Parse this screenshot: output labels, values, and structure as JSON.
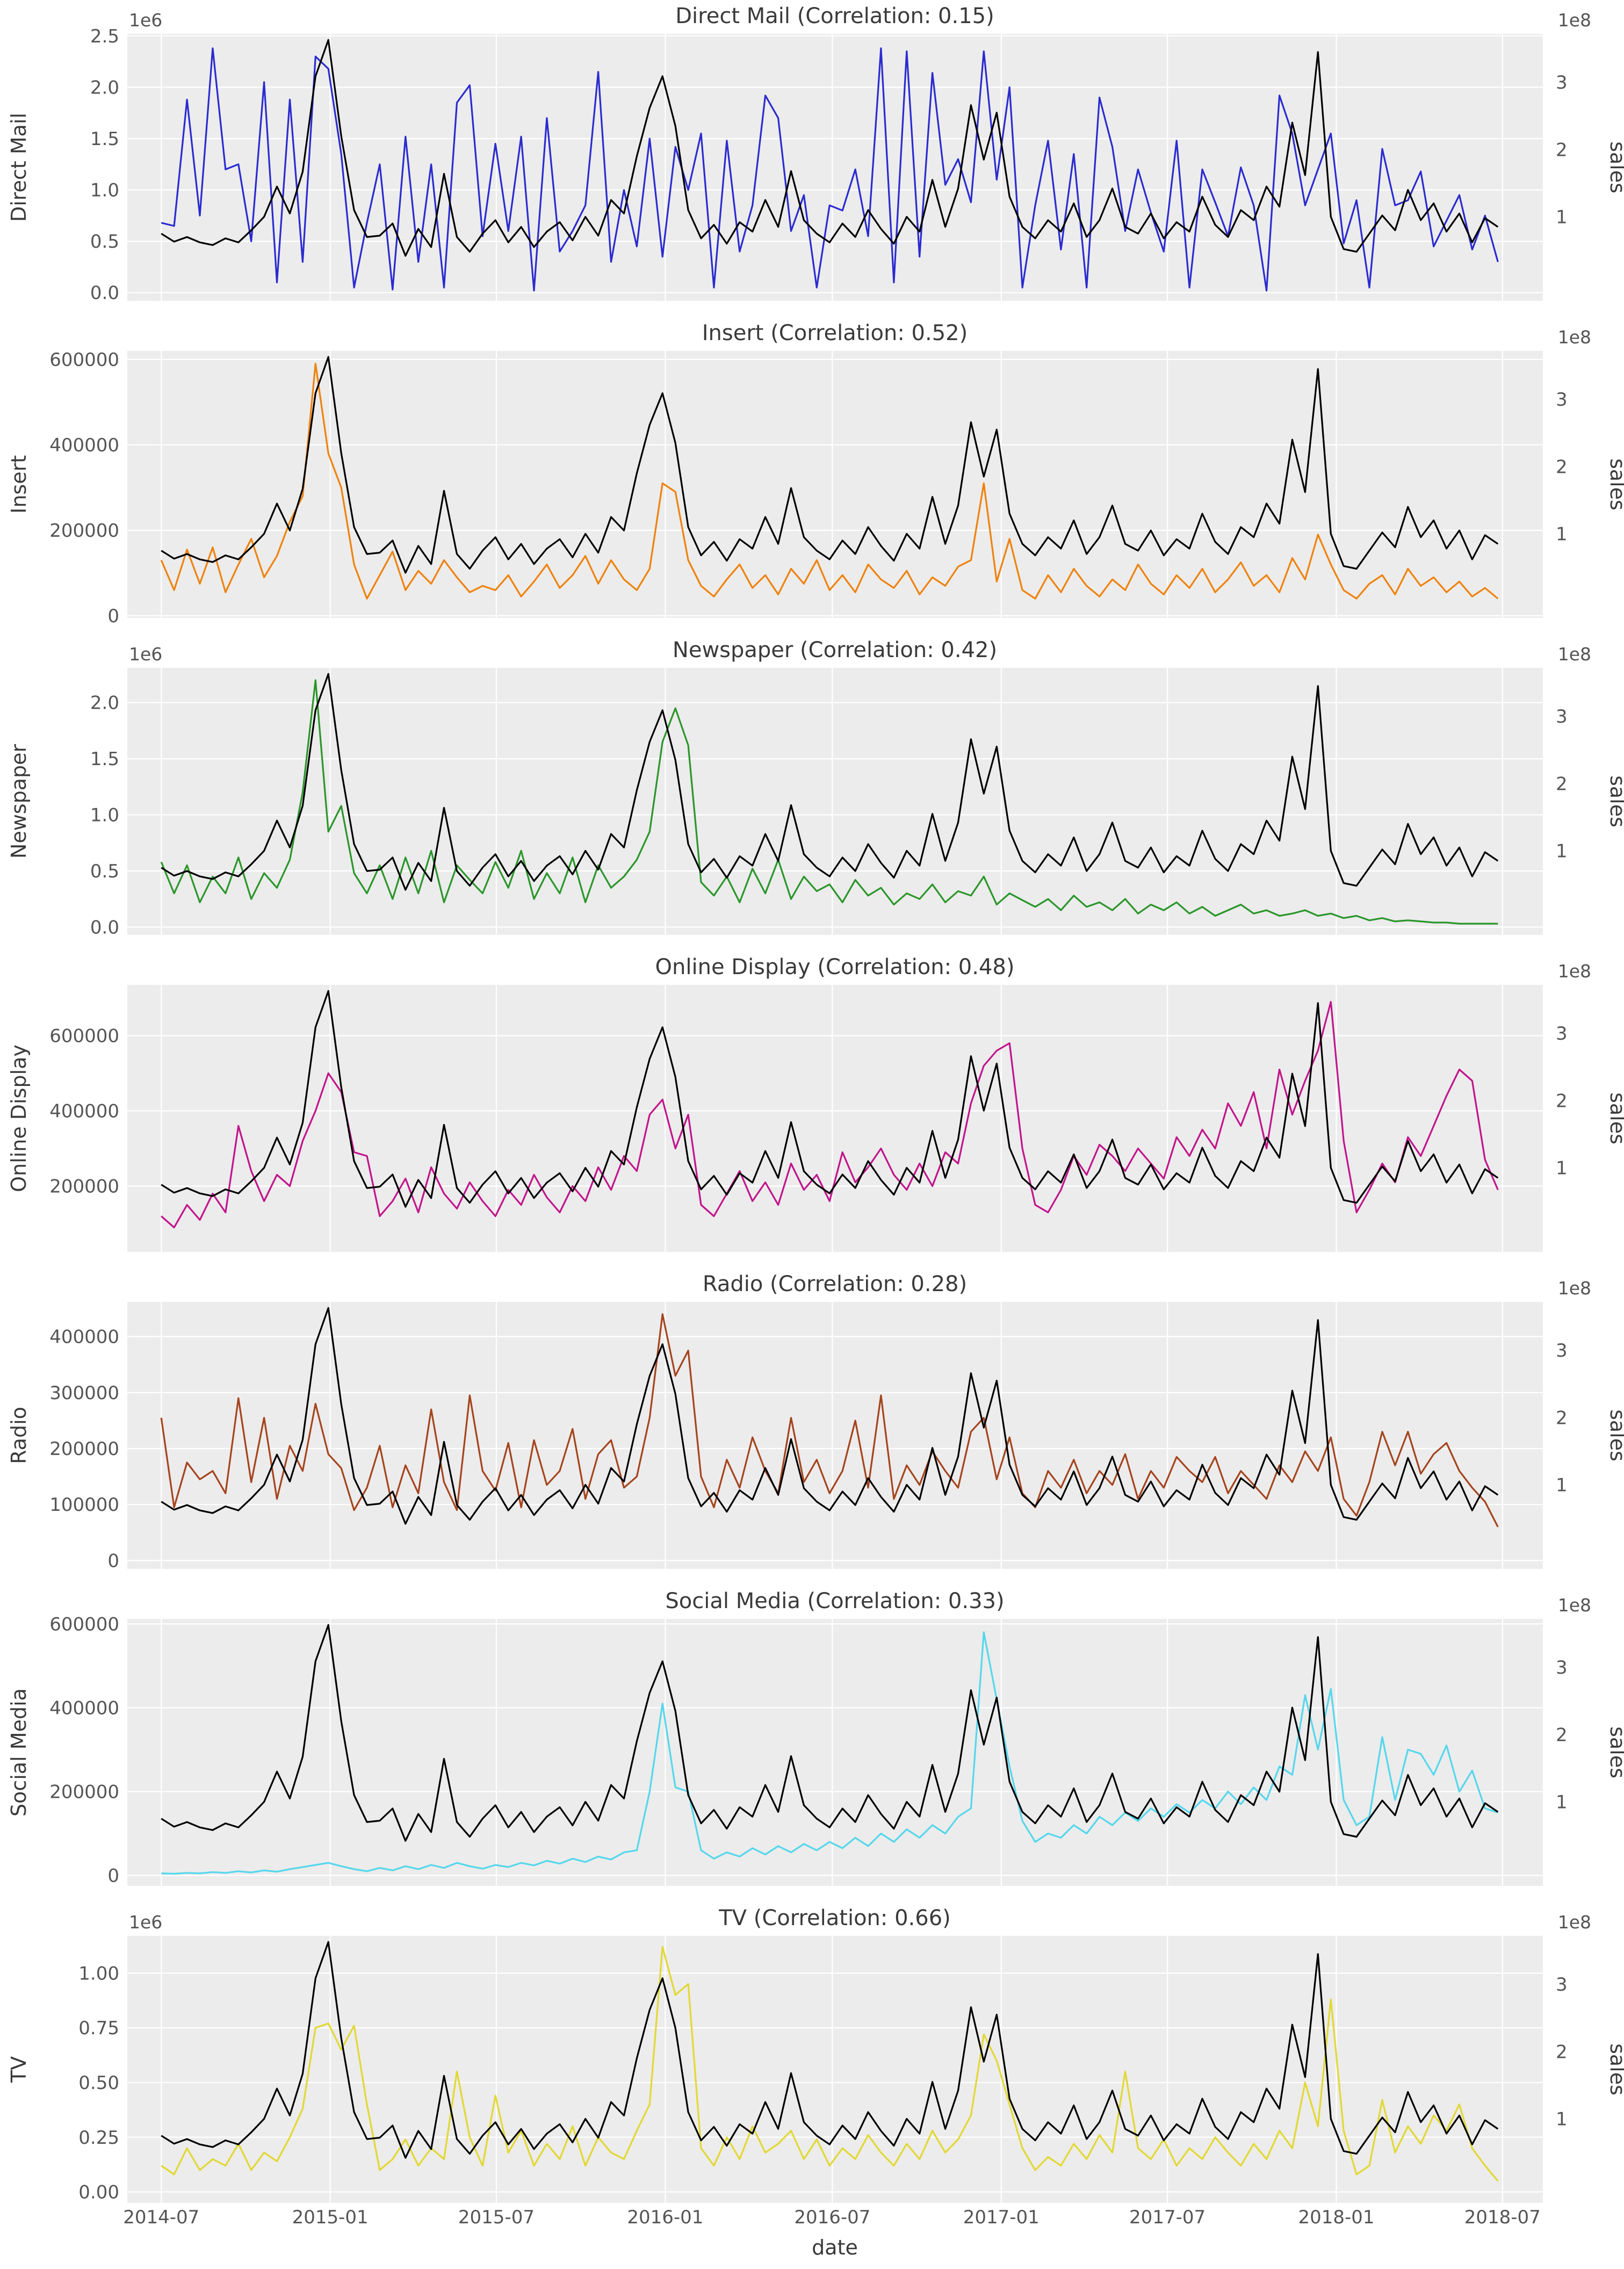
{
  "figure": {
    "xlabel": "date",
    "x_tick_labels": [
      "2014-07",
      "2015-01",
      "2015-07",
      "2016-01",
      "2016-07",
      "2017-01",
      "2017-07",
      "2018-01",
      "2018-07"
    ],
    "background": "#ffffff",
    "panel_bg": "#ececec",
    "grid_color": "#ffffff",
    "tick_color": "#555555",
    "title_color": "#3a3a3a",
    "sales_line_color": "#000000",
    "right_axis": {
      "label": "sales",
      "offset": "1e8",
      "tick_labels": [
        "1",
        "2",
        "3"
      ],
      "tick_values": [
        1,
        2,
        3
      ],
      "ylim": [
        -0.25,
        3.72
      ]
    }
  },
  "panels": [
    {
      "title": "Direct Mail (Correlation: 0.15)",
      "correlation": "0.15",
      "ylabel": "Direct Mail",
      "color": "#2b2bd1",
      "offset": "1e6",
      "tick_labels": [
        "0.0",
        "0.5",
        "1.0",
        "1.5",
        "2.0",
        "2.5"
      ],
      "tick_values": [
        0,
        0.5,
        1,
        1.5,
        2,
        2.5
      ],
      "ylim": [
        -0.08,
        2.52
      ],
      "series_key": "direct_mail_1e6"
    },
    {
      "title": "Insert (Correlation: 0.52)",
      "correlation": "0.52",
      "ylabel": "Insert",
      "color": "#ef820d",
      "offset": "",
      "tick_labels": [
        "0",
        "200000",
        "400000",
        "600000"
      ],
      "tick_values": [
        0,
        200000,
        400000,
        600000
      ],
      "ylim": [
        -5000,
        620000
      ],
      "series_key": "insert"
    },
    {
      "title": "Newspaper (Correlation: 0.42)",
      "correlation": "0.42",
      "ylabel": "Newspaper",
      "color": "#2a962a",
      "offset": "1e6",
      "tick_labels": [
        "0.0",
        "0.5",
        "1.0",
        "1.5",
        "2.0"
      ],
      "tick_values": [
        0,
        0.5,
        1,
        1.5,
        2
      ],
      "ylim": [
        -0.07,
        2.31
      ],
      "series_key": "newspaper_1e6"
    },
    {
      "title": "Online Display (Correlation: 0.48)",
      "correlation": "0.48",
      "ylabel": "Online Display",
      "color": "#c2148c",
      "offset": "",
      "tick_labels": [
        "200000",
        "400000",
        "600000"
      ],
      "tick_values": [
        200000,
        400000,
        600000
      ],
      "ylim": [
        25000,
        735000
      ],
      "series_key": "online_display"
    },
    {
      "title": "Radio (Correlation: 0.28)",
      "correlation": "0.28",
      "ylabel": "Radio",
      "color": "#a5441d",
      "offset": "",
      "tick_labels": [
        "0",
        "100000",
        "200000",
        "300000",
        "400000"
      ],
      "tick_values": [
        0,
        100000,
        200000,
        300000,
        400000
      ],
      "ylim": [
        -15000,
        462000
      ],
      "series_key": "radio"
    },
    {
      "title": "Social Media (Correlation: 0.33)",
      "correlation": "0.33",
      "ylabel": "Social Media",
      "color": "#55d7ec",
      "offset": "",
      "tick_labels": [
        "0",
        "200000",
        "400000",
        "600000"
      ],
      "tick_values": [
        0,
        200000,
        400000,
        600000
      ],
      "ylim": [
        -25000,
        612000
      ],
      "series_key": "social_media"
    },
    {
      "title": "TV (Correlation: 0.66)",
      "correlation": "0.66",
      "ylabel": "TV",
      "color": "#e2d832",
      "offset": "1e6",
      "tick_labels": [
        "0.00",
        "0.25",
        "0.50",
        "0.75",
        "1.00"
      ],
      "tick_values": [
        0,
        0.25,
        0.5,
        0.75,
        1
      ],
      "ylim": [
        -0.05,
        1.17
      ],
      "series_key": "tv_1e6"
    }
  ],
  "chart_data": {
    "type": "line",
    "title": "Marketing channel spend vs sales, weekly 2014-07 to 2018-07",
    "xlabel": "date",
    "legend_position": "none",
    "grid": true,
    "start_date": "2014-07-01",
    "interval_days": 14,
    "n_points": 105,
    "x_domain": [
      "2014-05-25",
      "2018-08-14"
    ],
    "x_tick_dates": [
      "2014-07-01",
      "2015-01-01",
      "2015-07-01",
      "2016-01-01",
      "2016-07-01",
      "2017-01-01",
      "2017-07-01",
      "2018-01-01",
      "2018-07-01"
    ],
    "sales_1e8": [
      0.75,
      0.63,
      0.7,
      0.62,
      0.58,
      0.68,
      0.62,
      0.8,
      1.0,
      1.45,
      1.05,
      1.67,
      3.09,
      3.63,
      2.2,
      1.1,
      0.7,
      0.72,
      0.9,
      0.42,
      0.82,
      0.55,
      1.64,
      0.7,
      0.48,
      0.75,
      0.95,
      0.62,
      0.85,
      0.55,
      0.78,
      0.92,
      0.65,
      1.0,
      0.72,
      1.25,
      1.05,
      1.9,
      2.62,
      3.09,
      2.35,
      1.1,
      0.68,
      0.88,
      0.6,
      0.92,
      0.78,
      1.25,
      0.85,
      1.68,
      0.95,
      0.75,
      0.62,
      0.9,
      0.7,
      1.1,
      0.82,
      0.6,
      1.0,
      0.78,
      1.55,
      0.85,
      1.42,
      2.66,
      1.85,
      2.55,
      1.3,
      0.85,
      0.68,
      0.95,
      0.78,
      1.2,
      0.7,
      0.95,
      1.42,
      0.85,
      0.75,
      1.05,
      0.68,
      0.92,
      0.78,
      1.3,
      0.88,
      0.7,
      1.1,
      0.95,
      1.45,
      1.15,
      2.4,
      1.62,
      3.45,
      1.0,
      0.52,
      0.48,
      0.75,
      1.02,
      0.8,
      1.4,
      0.95,
      1.2,
      0.78,
      1.05,
      0.62,
      0.98,
      0.85
    ],
    "series": {
      "direct_mail_1e6": [
        0.68,
        0.65,
        1.88,
        0.75,
        2.38,
        1.2,
        1.25,
        0.5,
        2.05,
        0.1,
        1.88,
        0.3,
        2.3,
        2.18,
        1.35,
        0.05,
        0.68,
        1.25,
        0.03,
        1.52,
        0.3,
        1.25,
        0.05,
        1.85,
        2.02,
        0.55,
        1.45,
        0.6,
        1.52,
        0.02,
        1.7,
        0.4,
        0.6,
        0.85,
        2.15,
        0.3,
        1.0,
        0.45,
        1.5,
        0.35,
        1.42,
        1.0,
        1.55,
        0.05,
        1.48,
        0.4,
        0.85,
        1.92,
        1.7,
        0.6,
        0.95,
        0.05,
        0.85,
        0.8,
        1.2,
        0.55,
        2.38,
        0.1,
        2.35,
        0.35,
        2.14,
        1.05,
        1.3,
        0.88,
        2.35,
        1.1,
        2.0,
        0.05,
        0.85,
        1.48,
        0.42,
        1.35,
        0.05,
        1.9,
        1.42,
        0.6,
        1.2,
        0.78,
        0.4,
        1.48,
        0.05,
        1.2,
        0.88,
        0.55,
        1.22,
        0.85,
        0.02,
        1.92,
        1.55,
        0.85,
        1.2,
        1.55,
        0.48,
        0.9,
        0.05,
        1.4,
        0.85,
        0.9,
        1.18,
        0.45,
        0.7,
        0.95,
        0.42,
        0.75,
        0.3
      ],
      "insert": [
        130000,
        60000,
        155000,
        75000,
        160000,
        55000,
        120000,
        180000,
        90000,
        140000,
        220000,
        280000,
        590000,
        380000,
        300000,
        120000,
        40000,
        95000,
        150000,
        60000,
        105000,
        75000,
        130000,
        90000,
        55000,
        70000,
        60000,
        95000,
        45000,
        80000,
        120000,
        65000,
        95000,
        140000,
        75000,
        130000,
        85000,
        60000,
        110000,
        310000,
        290000,
        130000,
        70000,
        45000,
        85000,
        120000,
        65000,
        95000,
        50000,
        110000,
        75000,
        130000,
        60000,
        95000,
        55000,
        120000,
        85000,
        65000,
        105000,
        50000,
        90000,
        70000,
        115000,
        130000,
        310000,
        80000,
        180000,
        60000,
        40000,
        95000,
        55000,
        110000,
        70000,
        45000,
        85000,
        60000,
        120000,
        75000,
        50000,
        95000,
        65000,
        110000,
        55000,
        85000,
        125000,
        70000,
        95000,
        55000,
        135000,
        85000,
        190000,
        120000,
        60000,
        40000,
        75000,
        95000,
        50000,
        110000,
        70000,
        90000,
        55000,
        80000,
        45000,
        65000,
        40000
      ],
      "newspaper_1e6": [
        0.58,
        0.3,
        0.55,
        0.22,
        0.45,
        0.3,
        0.62,
        0.25,
        0.48,
        0.35,
        0.6,
        1.2,
        2.2,
        0.85,
        1.08,
        0.48,
        0.3,
        0.55,
        0.25,
        0.62,
        0.3,
        0.68,
        0.22,
        0.55,
        0.42,
        0.3,
        0.58,
        0.35,
        0.68,
        0.25,
        0.48,
        0.3,
        0.62,
        0.22,
        0.55,
        0.35,
        0.45,
        0.6,
        0.85,
        1.65,
        1.95,
        1.62,
        0.4,
        0.28,
        0.45,
        0.22,
        0.52,
        0.3,
        0.6,
        0.25,
        0.45,
        0.32,
        0.38,
        0.22,
        0.42,
        0.28,
        0.35,
        0.2,
        0.3,
        0.25,
        0.38,
        0.22,
        0.32,
        0.28,
        0.45,
        0.2,
        0.3,
        0.24,
        0.18,
        0.25,
        0.15,
        0.28,
        0.18,
        0.22,
        0.15,
        0.25,
        0.12,
        0.2,
        0.15,
        0.22,
        0.12,
        0.18,
        0.1,
        0.15,
        0.2,
        0.12,
        0.15,
        0.1,
        0.12,
        0.15,
        0.1,
        0.12,
        0.08,
        0.1,
        0.06,
        0.08,
        0.05,
        0.06,
        0.05,
        0.04,
        0.04,
        0.03,
        0.03,
        0.03,
        0.03
      ],
      "online_display": [
        120000,
        90000,
        150000,
        110000,
        180000,
        130000,
        360000,
        240000,
        160000,
        230000,
        200000,
        320000,
        400000,
        500000,
        450000,
        290000,
        280000,
        120000,
        160000,
        220000,
        130000,
        250000,
        180000,
        140000,
        210000,
        160000,
        120000,
        190000,
        150000,
        230000,
        170000,
        130000,
        200000,
        160000,
        250000,
        190000,
        280000,
        240000,
        390000,
        430000,
        300000,
        390000,
        150000,
        120000,
        180000,
        240000,
        160000,
        210000,
        150000,
        260000,
        190000,
        230000,
        160000,
        290000,
        210000,
        250000,
        300000,
        230000,
        190000,
        260000,
        200000,
        290000,
        260000,
        420000,
        520000,
        560000,
        580000,
        300000,
        150000,
        130000,
        190000,
        280000,
        230000,
        310000,
        280000,
        240000,
        300000,
        260000,
        220000,
        330000,
        280000,
        350000,
        300000,
        420000,
        360000,
        450000,
        300000,
        510000,
        390000,
        480000,
        560000,
        690000,
        320000,
        130000,
        190000,
        260000,
        210000,
        330000,
        280000,
        360000,
        440000,
        510000,
        480000,
        270000,
        190000
      ],
      "radio": [
        255000,
        95000,
        175000,
        145000,
        160000,
        120000,
        290000,
        140000,
        255000,
        110000,
        205000,
        160000,
        280000,
        190000,
        165000,
        90000,
        130000,
        205000,
        95000,
        170000,
        120000,
        270000,
        140000,
        90000,
        295000,
        160000,
        125000,
        210000,
        95000,
        215000,
        135000,
        160000,
        235000,
        110000,
        190000,
        215000,
        130000,
        150000,
        255000,
        440000,
        330000,
        375000,
        150000,
        95000,
        180000,
        130000,
        220000,
        160000,
        120000,
        255000,
        140000,
        180000,
        120000,
        160000,
        250000,
        130000,
        295000,
        110000,
        170000,
        135000,
        195000,
        160000,
        130000,
        230000,
        255000,
        145000,
        220000,
        120000,
        95000,
        160000,
        130000,
        180000,
        120000,
        160000,
        135000,
        190000,
        110000,
        160000,
        130000,
        185000,
        160000,
        140000,
        185000,
        120000,
        160000,
        135000,
        110000,
        170000,
        140000,
        195000,
        160000,
        220000,
        110000,
        80000,
        140000,
        230000,
        170000,
        230000,
        155000,
        190000,
        210000,
        160000,
        130000,
        105000,
        60000
      ],
      "social_media": [
        5000,
        4000,
        6000,
        5000,
        8000,
        6000,
        10000,
        7000,
        12000,
        9000,
        15000,
        20000,
        25000,
        30000,
        22000,
        15000,
        10000,
        18000,
        12000,
        22000,
        15000,
        25000,
        18000,
        30000,
        22000,
        16000,
        25000,
        20000,
        30000,
        24000,
        35000,
        28000,
        40000,
        32000,
        45000,
        38000,
        55000,
        60000,
        200000,
        410000,
        210000,
        200000,
        60000,
        40000,
        55000,
        45000,
        65000,
        50000,
        70000,
        55000,
        75000,
        60000,
        80000,
        65000,
        90000,
        70000,
        100000,
        80000,
        110000,
        90000,
        120000,
        100000,
        140000,
        160000,
        580000,
        420000,
        260000,
        130000,
        80000,
        100000,
        90000,
        120000,
        100000,
        140000,
        120000,
        150000,
        130000,
        160000,
        140000,
        170000,
        150000,
        180000,
        160000,
        200000,
        170000,
        210000,
        180000,
        260000,
        240000,
        430000,
        300000,
        445000,
        180000,
        120000,
        140000,
        330000,
        180000,
        300000,
        290000,
        240000,
        310000,
        200000,
        250000,
        160000,
        150000
      ],
      "tv_1e6": [
        0.12,
        0.08,
        0.2,
        0.1,
        0.15,
        0.12,
        0.22,
        0.1,
        0.18,
        0.14,
        0.25,
        0.38,
        0.75,
        0.77,
        0.65,
        0.76,
        0.4,
        0.1,
        0.15,
        0.24,
        0.12,
        0.2,
        0.15,
        0.55,
        0.25,
        0.12,
        0.44,
        0.18,
        0.28,
        0.12,
        0.22,
        0.15,
        0.3,
        0.12,
        0.25,
        0.18,
        0.15,
        0.28,
        0.4,
        1.12,
        0.9,
        0.95,
        0.2,
        0.12,
        0.25,
        0.15,
        0.3,
        0.18,
        0.22,
        0.28,
        0.15,
        0.24,
        0.12,
        0.2,
        0.15,
        0.26,
        0.18,
        0.12,
        0.22,
        0.15,
        0.28,
        0.18,
        0.24,
        0.35,
        0.72,
        0.6,
        0.4,
        0.2,
        0.1,
        0.16,
        0.12,
        0.22,
        0.15,
        0.26,
        0.18,
        0.55,
        0.2,
        0.15,
        0.24,
        0.12,
        0.2,
        0.15,
        0.25,
        0.18,
        0.12,
        0.22,
        0.15,
        0.28,
        0.2,
        0.5,
        0.3,
        0.88,
        0.28,
        0.08,
        0.12,
        0.42,
        0.18,
        0.3,
        0.22,
        0.35,
        0.28,
        0.4,
        0.2,
        0.12,
        0.05
      ]
    }
  }
}
